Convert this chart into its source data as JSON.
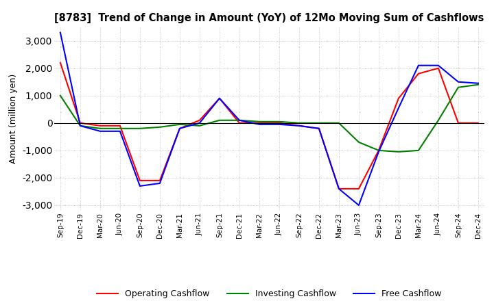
{
  "title": "[8783]  Trend of Change in Amount (YoY) of 12Mo Moving Sum of Cashflows",
  "ylabel": "Amount (million yen)",
  "ylim": [
    -3200,
    3500
  ],
  "yticks": [
    -3000,
    -2000,
    -1000,
    0,
    1000,
    2000,
    3000
  ],
  "x_labels": [
    "Sep-19",
    "Dec-19",
    "Mar-20",
    "Jun-20",
    "Sep-20",
    "Dec-20",
    "Mar-21",
    "Jun-21",
    "Sep-21",
    "Dec-21",
    "Mar-22",
    "Jun-22",
    "Sep-22",
    "Dec-22",
    "Mar-23",
    "Jun-23",
    "Sep-23",
    "Dec-23",
    "Mar-24",
    "Jun-24",
    "Sep-24",
    "Dec-24"
  ],
  "operating": [
    2200,
    0,
    -100,
    -100,
    -2100,
    -2100,
    -200,
    100,
    900,
    0,
    0,
    0,
    -100,
    -200,
    -2400,
    -2400,
    -1000,
    900,
    1800,
    2000,
    0,
    0
  ],
  "investing": [
    1000,
    -100,
    -200,
    -200,
    -200,
    -150,
    -50,
    -100,
    100,
    100,
    50,
    50,
    0,
    0,
    0,
    -700,
    -1000,
    -1050,
    -1000,
    100,
    1300,
    1400
  ],
  "free": [
    3300,
    -100,
    -300,
    -300,
    -2300,
    -2200,
    -200,
    0,
    900,
    100,
    -50,
    -50,
    -100,
    -200,
    -2400,
    -3000,
    -1050,
    550,
    2100,
    2100,
    1500,
    1450
  ],
  "op_color": "#ff0000",
  "inv_color": "#008000",
  "free_color": "#0000ff",
  "legend_labels": [
    "Operating Cashflow",
    "Investing Cashflow",
    "Free Cashflow"
  ],
  "background_color": "#ffffff",
  "grid_color": "#aaaaaa"
}
